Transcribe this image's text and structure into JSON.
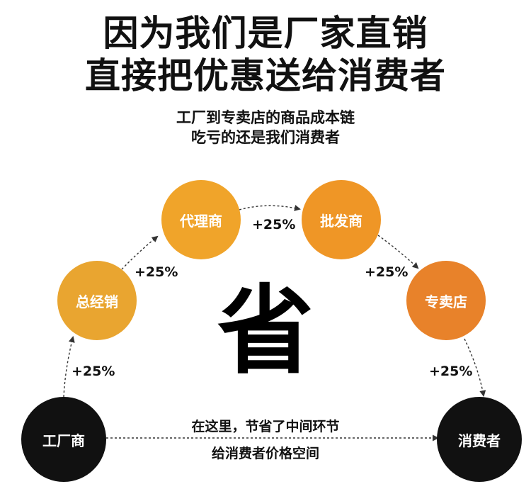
{
  "headline": {
    "line1": "因为我们是厂家直销",
    "line2": "直接把优惠送给消费者"
  },
  "subhead": {
    "line1": "工厂到专卖店的商品成本链",
    "line2": "吃亏的还是我们消费者"
  },
  "center_char": "省",
  "nodes": [
    {
      "label": "工厂商",
      "color": "#111111"
    },
    {
      "label": "总经销",
      "color": "#e9a530"
    },
    {
      "label": "代理商",
      "color": "#f0a42a"
    },
    {
      "label": "批发商",
      "color": "#ef9626"
    },
    {
      "label": "专卖店",
      "color": "#e8822a"
    },
    {
      "label": "消费者",
      "color": "#111111"
    }
  ],
  "markups": [
    "+25%",
    "+25%",
    "+25%",
    "+25%",
    "+25%"
  ],
  "bottom_note": {
    "line1": "在这里，节省了中间环节",
    "line2": "给消费者价格空间"
  }
}
